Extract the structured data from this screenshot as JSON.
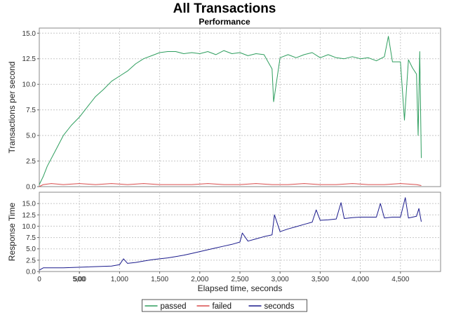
{
  "chart_data": {
    "type": "line",
    "title": "All Transactions",
    "subtitle": "Performance",
    "xlabel": "Elapsed time, seconds",
    "xlim": [
      0,
      5000
    ],
    "x_ticks": [
      "0",
      "500",
      "1,000",
      "1,500",
      "2,000",
      "2,500",
      "3,000",
      "3,500",
      "4,000",
      "4,500",
      "5,00"
    ],
    "grid": true,
    "legend_position": "bottom",
    "panels": [
      {
        "ylabel": "Transactions per second",
        "ylim": [
          0,
          15.5
        ],
        "y_ticks": [
          "0.0",
          "2.5",
          "5.0",
          "7.5",
          "10.0",
          "12.5",
          "15.0"
        ],
        "series": [
          {
            "name": "passed",
            "color": "#2e9e5e",
            "x": [
              0,
              50,
              100,
              200,
              300,
              400,
              500,
              600,
              700,
              800,
              900,
              1000,
              1100,
              1200,
              1300,
              1400,
              1500,
              1600,
              1700,
              1800,
              1900,
              2000,
              2100,
              2200,
              2300,
              2400,
              2500,
              2600,
              2700,
              2800,
              2900,
              2920,
              3000,
              3100,
              3200,
              3300,
              3400,
              3500,
              3600,
              3700,
              3800,
              3900,
              4000,
              4100,
              4200,
              4300,
              4350,
              4400,
              4500,
              4550,
              4600,
              4650,
              4700,
              4720,
              4740,
              4760
            ],
            "y": [
              0.2,
              1.0,
              2.0,
              3.5,
              5.0,
              6.0,
              6.8,
              7.8,
              8.8,
              9.5,
              10.3,
              10.8,
              11.3,
              12.0,
              12.5,
              12.8,
              13.1,
              13.2,
              13.2,
              13.0,
              13.1,
              13.0,
              13.2,
              12.9,
              13.3,
              13.0,
              13.1,
              12.8,
              13.0,
              12.9,
              11.5,
              8.3,
              12.6,
              12.9,
              12.6,
              12.9,
              13.1,
              12.6,
              12.9,
              12.6,
              12.5,
              12.7,
              12.5,
              12.6,
              12.3,
              12.7,
              14.7,
              12.2,
              12.2,
              6.5,
              12.4,
              11.6,
              11.0,
              5.0,
              13.2,
              2.8
            ]
          },
          {
            "name": "failed",
            "color": "#d94c4c",
            "x": [
              0,
              50,
              150,
              300,
              500,
              700,
              900,
              1100,
              1300,
              1500,
              1700,
              1900,
              2100,
              2300,
              2500,
              2700,
              2900,
              3100,
              3300,
              3500,
              3700,
              3900,
              4100,
              4300,
              4500,
              4700,
              4760
            ],
            "y": [
              0.0,
              0.2,
              0.3,
              0.2,
              0.3,
              0.2,
              0.3,
              0.2,
              0.3,
              0.2,
              0.2,
              0.2,
              0.3,
              0.2,
              0.2,
              0.3,
              0.2,
              0.2,
              0.3,
              0.2,
              0.2,
              0.3,
              0.2,
              0.2,
              0.3,
              0.2,
              0.1
            ]
          }
        ]
      },
      {
        "ylabel": "Response Time",
        "ylim": [
          0,
          17.5
        ],
        "y_ticks": [
          "0.0",
          "2.5",
          "5.0",
          "7.5",
          "10.0",
          "12.5",
          "15.0"
        ],
        "series": [
          {
            "name": "seconds",
            "color": "#1a1a8c",
            "x": [
              0,
              50,
              300,
              600,
              900,
              1000,
              1050,
              1100,
              1200,
              1300,
              1400,
              1500,
              1600,
              1700,
              1800,
              1900,
              2000,
              2100,
              2200,
              2300,
              2400,
              2500,
              2530,
              2600,
              2700,
              2800,
              2900,
              2930,
              3000,
              3100,
              3200,
              3300,
              3400,
              3450,
              3500,
              3600,
              3700,
              3760,
              3800,
              3900,
              4000,
              4100,
              4200,
              4250,
              4300,
              4400,
              4500,
              4560,
              4600,
              4700,
              4730,
              4760
            ],
            "y": [
              0.3,
              0.8,
              0.8,
              1.0,
              1.2,
              1.5,
              2.8,
              1.8,
              2.0,
              2.3,
              2.6,
              2.8,
              3.0,
              3.3,
              3.6,
              4.0,
              4.4,
              4.8,
              5.2,
              5.6,
              6.0,
              6.5,
              8.5,
              6.7,
              7.2,
              7.7,
              8.1,
              12.5,
              8.8,
              9.4,
              9.9,
              10.4,
              10.9,
              13.6,
              11.3,
              11.4,
              11.6,
              15.2,
              11.7,
              11.9,
              12.0,
              12.0,
              12.0,
              15.0,
              11.8,
              12.0,
              12.0,
              16.3,
              11.8,
              12.2,
              13.9,
              11.0
            ]
          }
        ]
      }
    ]
  }
}
